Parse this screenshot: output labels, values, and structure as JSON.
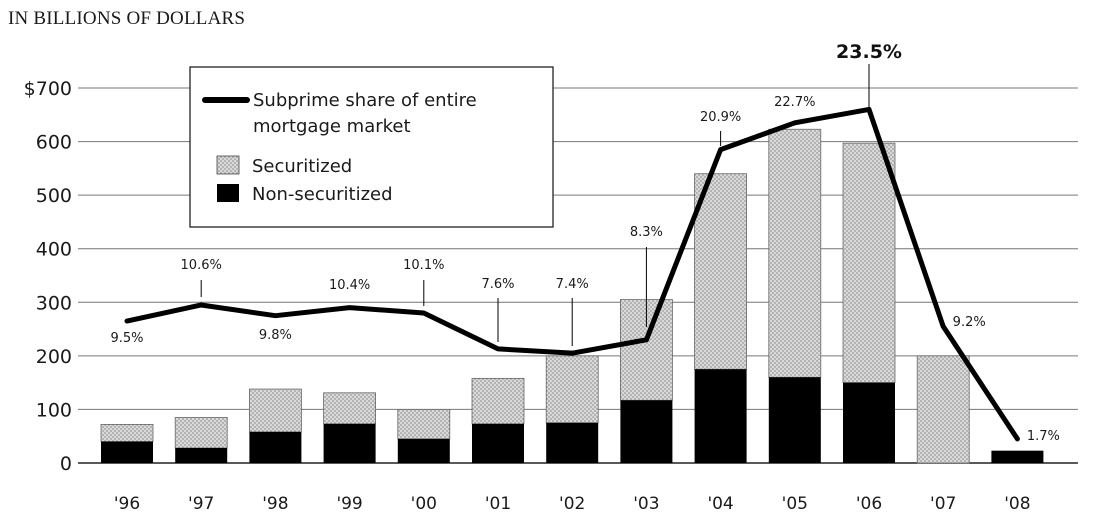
{
  "chart_data": {
    "type": "bar",
    "title": "IN BILLIONS OF DOLLARS",
    "categories": [
      "'96",
      "'97",
      "'98",
      "'99",
      "'00",
      "'01",
      "'02",
      "'03",
      "'04",
      "'05",
      "'06",
      "'07",
      "'08"
    ],
    "series": [
      {
        "name": "Non-securitized",
        "values": [
          40,
          28,
          58,
          73,
          45,
          73,
          75,
          117,
          175,
          160,
          150,
          0,
          23
        ]
      },
      {
        "name": "Securitized",
        "values": [
          32,
          57,
          80,
          58,
          55,
          85,
          125,
          188,
          365,
          463,
          447,
          200,
          0
        ]
      },
      {
        "name": "Subprime share of entire mortgage market",
        "kind": "line",
        "values": [
          265,
          295,
          275,
          290,
          280,
          213,
          205,
          230,
          585,
          635,
          660,
          255,
          45
        ],
        "labels": [
          "9.5%",
          "10.6%",
          "9.8%",
          "10.4%",
          "10.1%",
          "7.6%",
          "7.4%",
          "8.3%",
          "20.9%",
          "22.7%",
          "23.5%",
          "9.2%",
          "1.7%"
        ]
      }
    ],
    "yticks": [
      "0",
      "100",
      "200",
      "300",
      "400",
      "500",
      "600",
      "$700"
    ],
    "ylim": [
      0,
      700
    ],
    "stacked": true,
    "grid": true,
    "legend": "top-left",
    "legend_entries": [
      "Subprime share of entire",
      "mortgage market",
      "Securitized",
      "Non-securitized"
    ],
    "colors": {
      "securitized": "#d4d4d4",
      "non_securitized": "#000000",
      "line": "#000000"
    }
  }
}
